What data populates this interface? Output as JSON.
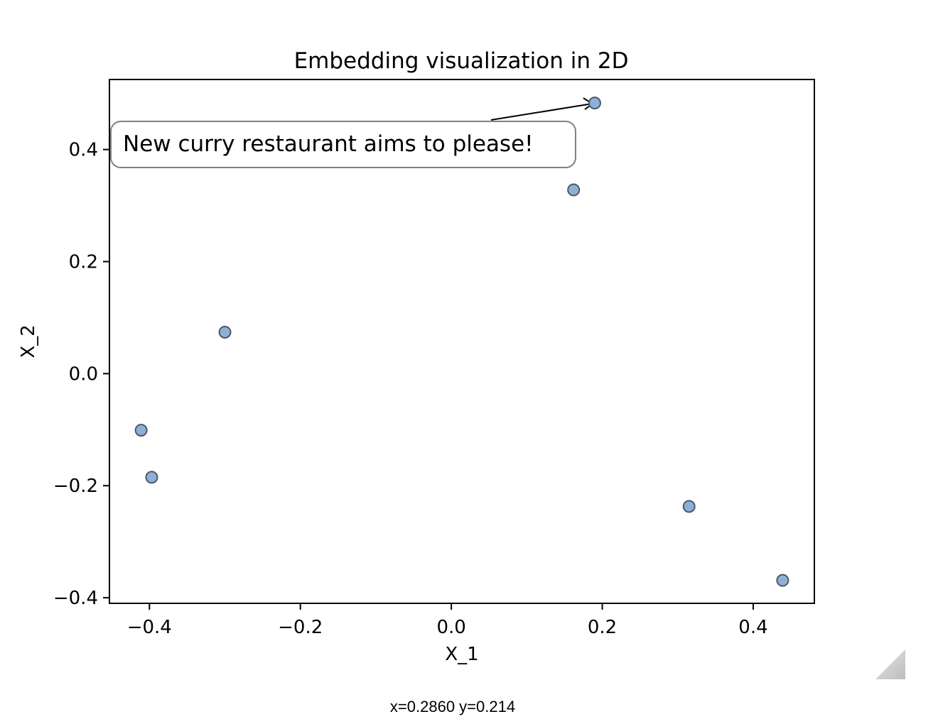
{
  "chart_data": {
    "type": "scatter",
    "title": "Embedding visualization in 2D",
    "xlabel": "X_1",
    "ylabel": "X_2",
    "xlim": [
      -0.453,
      0.481
    ],
    "ylim": [
      -0.41,
      0.525
    ],
    "xticks": [
      -0.4,
      -0.2,
      0.0,
      0.2,
      0.4
    ],
    "xtick_labels": [
      "−0.4",
      "−0.2",
      "0.0",
      "0.2",
      "0.4"
    ],
    "yticks": [
      -0.4,
      -0.2,
      0.0,
      0.2,
      0.4
    ],
    "ytick_labels": [
      "−0.4",
      "−0.2",
      "0.0",
      "0.2",
      "0.4"
    ],
    "grid": false,
    "marker_color": "#8fb0d6",
    "marker_edge_color": "#4d5866",
    "points": [
      {
        "x": 0.19,
        "y": 0.483
      },
      {
        "x": 0.162,
        "y": 0.328
      },
      {
        "x": -0.3,
        "y": 0.074
      },
      {
        "x": -0.411,
        "y": -0.101
      },
      {
        "x": -0.397,
        "y": -0.185
      },
      {
        "x": 0.315,
        "y": -0.237
      },
      {
        "x": 0.439,
        "y": -0.369
      }
    ],
    "annotation": {
      "text": "New curry restaurant aims to please!",
      "point_index": 0
    }
  },
  "status": {
    "cursor_readout": "x=0.2860 y=0.214"
  }
}
